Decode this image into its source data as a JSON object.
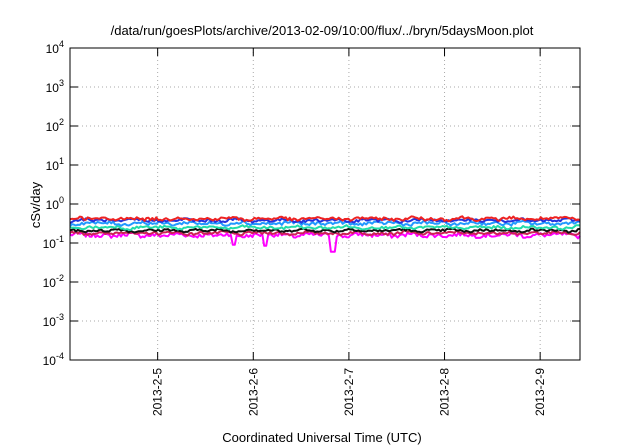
{
  "chart_data": {
    "type": "line",
    "title": "/data/run/goesPlots/archive/2013-02-09/10:00/flux/../bryn/5daysMoon.plot",
    "xlabel": "Coordinated Universal Time (UTC)",
    "ylabel": "cSv/day",
    "yscale": "log",
    "ylim": [
      0.0001,
      10000
    ],
    "y_ticks": [
      {
        "value": 0.0001,
        "base": "10",
        "exp": "-4"
      },
      {
        "value": 0.001,
        "base": "10",
        "exp": "-3"
      },
      {
        "value": 0.01,
        "base": "10",
        "exp": "-2"
      },
      {
        "value": 0.1,
        "base": "10",
        "exp": "-1"
      },
      {
        "value": 1,
        "base": "10",
        "exp": "0"
      },
      {
        "value": 10,
        "base": "10",
        "exp": "1"
      },
      {
        "value": 100,
        "base": "10",
        "exp": "2"
      },
      {
        "value": 1000,
        "base": "10",
        "exp": "3"
      },
      {
        "value": 10000,
        "base": "10",
        "exp": "4"
      }
    ],
    "xlim": [
      "2013-02-04T02:00",
      "2013-02-09T10:00"
    ],
    "x_ticks": [
      {
        "value": "2013-02-05T00:00",
        "label": "2013-2-5"
      },
      {
        "value": "2013-02-06T00:00",
        "label": "2013-2-6"
      },
      {
        "value": "2013-02-07T00:00",
        "label": "2013-2-7"
      },
      {
        "value": "2013-02-08T00:00",
        "label": "2013-2-8"
      },
      {
        "value": "2013-02-09T00:00",
        "label": "2013-2-9"
      }
    ],
    "grid": true,
    "series": [
      {
        "color": "#ff00ff",
        "base": 0.16,
        "amp": 0.12,
        "dips": [
          {
            "at": "2013-02-06T20:00",
            "value": 0.06
          },
          {
            "at": "2013-02-05T19:00",
            "value": 0.09
          },
          {
            "at": "2013-02-06T03:00",
            "value": 0.085
          }
        ]
      },
      {
        "color": "#cc2255",
        "base": 0.18,
        "amp": 0.08,
        "dips": []
      },
      {
        "color": "#111111",
        "base": 0.21,
        "amp": 0.07,
        "dips": []
      },
      {
        "color": "#22ddaa",
        "base": 0.25,
        "amp": 0.07,
        "dips": []
      },
      {
        "color": "#2299ff",
        "base": 0.32,
        "amp": 0.09,
        "dips": []
      },
      {
        "color": "#2233dd",
        "base": 0.38,
        "amp": 0.08,
        "dips": []
      },
      {
        "color": "#ee2222",
        "base": 0.42,
        "amp": 0.09,
        "dips": []
      }
    ]
  }
}
